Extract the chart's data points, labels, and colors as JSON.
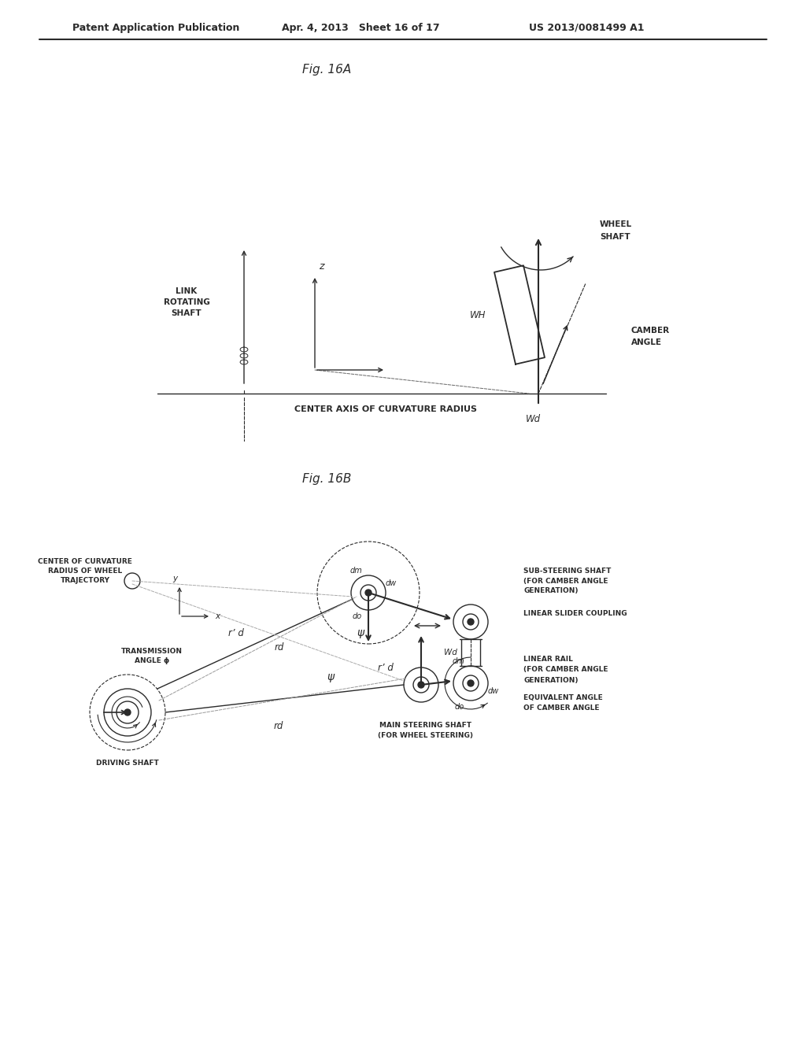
{
  "bg_color": "#ffffff",
  "header_left": "Patent Application Publication",
  "header_mid": "Apr. 4, 2013   Sheet 16 of 17",
  "header_right": "US 2013/0081499 A1",
  "fig16a_label": "Fig. 16A",
  "fig16b_label": "Fig. 16B",
  "lc": "#2a2a2a",
  "tc": "#2a2a2a"
}
